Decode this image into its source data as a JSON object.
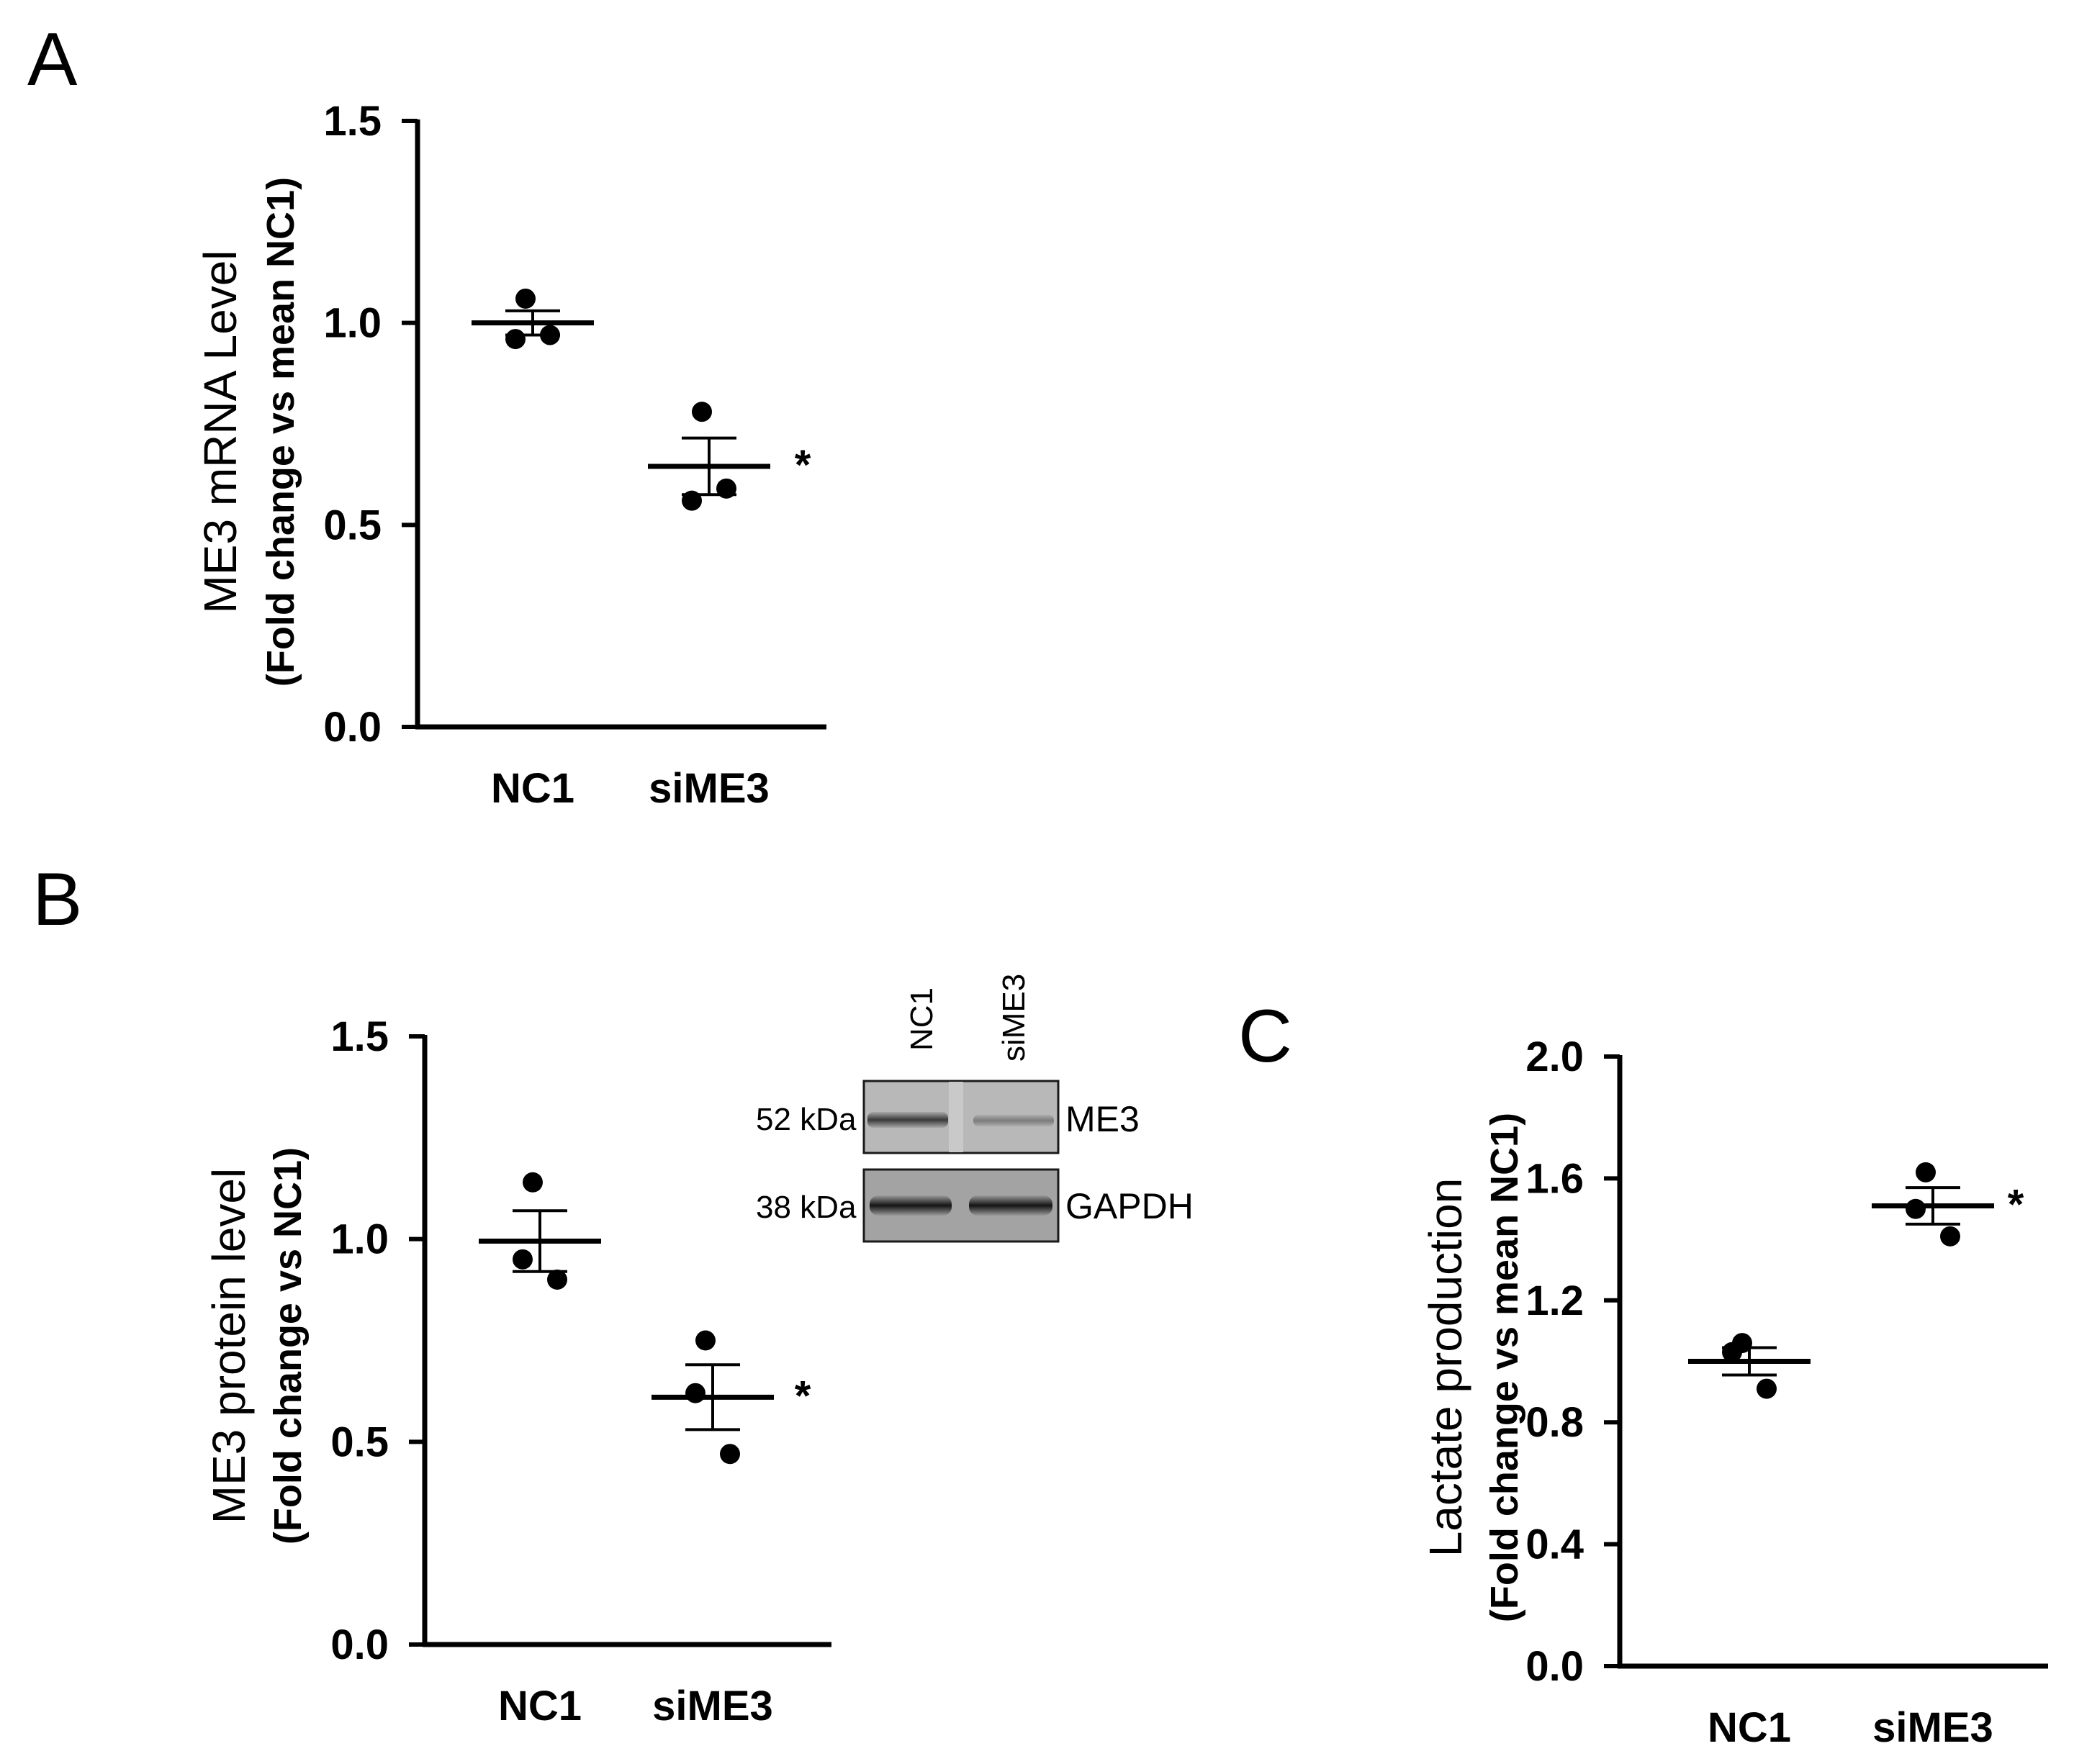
{
  "panels": {
    "A": {
      "letter": "A"
    },
    "B": {
      "letter": "B"
    },
    "C": {
      "letter": "C"
    }
  },
  "chart_data": [
    {
      "id": "A",
      "type": "scatter",
      "categories": [
        "NC1",
        "siME3"
      ],
      "ylabel": "ME3 mRNA Level",
      "ylabel_sub": "(Fold change vs mean NC1)",
      "ylim": [
        0,
        1.5
      ],
      "yticks": [
        "0.0",
        "0.5",
        "1.0",
        "1.5"
      ],
      "series": [
        {
          "category": "NC1",
          "points": [
            1.06,
            0.96,
            0.97
          ],
          "mean": 1.0,
          "sem": 0.03
        },
        {
          "category": "siME3",
          "points": [
            0.78,
            0.56,
            0.59
          ],
          "mean": 0.645,
          "sem": 0.07,
          "significance": "*"
        }
      ],
      "grid": false
    },
    {
      "id": "B",
      "type": "scatter",
      "categories": [
        "NC1",
        "siME3"
      ],
      "ylabel": "ME3 protein level",
      "ylabel_sub": "(Fold change vs NC1)",
      "ylim": [
        0,
        1.5
      ],
      "yticks": [
        "0.0",
        "0.5",
        "1.0",
        "1.5"
      ],
      "series": [
        {
          "category": "NC1",
          "points": [
            1.14,
            0.95,
            0.9
          ],
          "mean": 0.995,
          "sem": 0.075
        },
        {
          "category": "siME3",
          "points": [
            0.75,
            0.62,
            0.47
          ],
          "mean": 0.61,
          "sem": 0.08,
          "significance": "*"
        }
      ],
      "grid": false
    },
    {
      "id": "C",
      "type": "scatter",
      "categories": [
        "NC1",
        "siME3"
      ],
      "ylabel": "Lactate production",
      "ylabel_sub": "(Fold change vs mean NC1)",
      "ylim": [
        0,
        2.0
      ],
      "yticks": [
        "0.0",
        "0.4",
        "0.8",
        "1.2",
        "1.6",
        "2.0"
      ],
      "series": [
        {
          "category": "NC1",
          "points": [
            1.06,
            1.03,
            0.91
          ],
          "mean": 1.0,
          "sem": 0.045
        },
        {
          "category": "siME3",
          "points": [
            1.62,
            1.5,
            1.41
          ],
          "mean": 1.51,
          "sem": 0.06,
          "significance": "*"
        }
      ],
      "grid": false
    }
  ],
  "western_blot": {
    "lanes": [
      "NC1",
      "siME3"
    ],
    "rows": [
      {
        "mw": "52 kDa",
        "protein": "ME3"
      },
      {
        "mw": "38 kDa",
        "protein": "GAPDH"
      }
    ]
  }
}
